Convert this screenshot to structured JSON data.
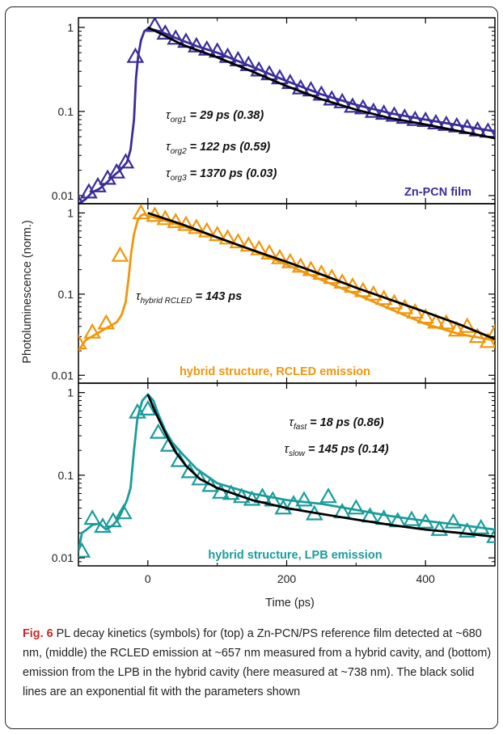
{
  "chart_data": {
    "type": "scatter",
    "shared_x": {
      "label": "Time (ps)",
      "lim": [
        -100,
        500
      ],
      "ticks": [
        0,
        200,
        400
      ]
    },
    "shared_y_label": "Photoluminescence (norm.)",
    "y_scale": "log",
    "panels": [
      {
        "name": "top",
        "label": "Zn-PCN film",
        "color": "#3a2d9a",
        "ylim": [
          0.008,
          1.3
        ],
        "y_ticks": [
          {
            "v": 1,
            "t": "1"
          },
          {
            "v": 0.1,
            "t": "0.1"
          },
          {
            "v": 0.01,
            "t": "0.01"
          }
        ],
        "annotations": [
          {
            "sub": "org1",
            "text": "= 29 ps (0.38)"
          },
          {
            "sub": "org2",
            "text": "= 122 ps (0.59)"
          },
          {
            "sub": "org3",
            "text": "= 1370 ps (0.03)"
          }
        ],
        "data_line": [
          [
            -100,
            0.008
          ],
          [
            -90,
            0.009
          ],
          [
            -80,
            0.011
          ],
          [
            -70,
            0.012
          ],
          [
            -60,
            0.014
          ],
          [
            -50,
            0.017
          ],
          [
            -40,
            0.02
          ],
          [
            -30,
            0.025
          ],
          [
            -25,
            0.035
          ],
          [
            -20,
            0.08
          ],
          [
            -17,
            0.25
          ],
          [
            -14,
            0.45
          ],
          [
            -10,
            0.7
          ],
          [
            -5,
            0.9
          ],
          [
            0,
            0.97
          ],
          [
            10,
            0.93
          ],
          [
            20,
            0.88
          ],
          [
            40,
            0.75
          ],
          [
            70,
            0.6
          ],
          [
            100,
            0.5
          ],
          [
            150,
            0.34
          ],
          [
            200,
            0.23
          ],
          [
            250,
            0.16
          ],
          [
            300,
            0.12
          ],
          [
            350,
            0.095
          ],
          [
            400,
            0.08
          ],
          [
            450,
            0.068
          ],
          [
            500,
            0.058
          ]
        ],
        "markers": [
          [
            -100,
            0.008
          ],
          [
            -85,
            0.011
          ],
          [
            -72,
            0.013
          ],
          [
            -58,
            0.016
          ],
          [
            -45,
            0.019
          ],
          [
            -32,
            0.025
          ],
          [
            -18,
            0.45
          ],
          [
            10,
            1.05
          ],
          [
            25,
            0.85
          ],
          [
            40,
            0.74
          ],
          [
            55,
            0.68
          ],
          [
            70,
            0.6
          ],
          [
            85,
            0.55
          ],
          [
            100,
            0.52
          ],
          [
            115,
            0.45
          ],
          [
            130,
            0.41
          ],
          [
            145,
            0.36
          ],
          [
            160,
            0.31
          ],
          [
            175,
            0.28
          ],
          [
            190,
            0.25
          ],
          [
            205,
            0.22
          ],
          [
            220,
            0.19
          ],
          [
            235,
            0.18
          ],
          [
            250,
            0.16
          ],
          [
            265,
            0.14
          ],
          [
            280,
            0.13
          ],
          [
            295,
            0.115
          ],
          [
            310,
            0.11
          ],
          [
            325,
            0.1
          ],
          [
            340,
            0.095
          ],
          [
            355,
            0.09
          ],
          [
            370,
            0.085
          ],
          [
            385,
            0.08
          ],
          [
            400,
            0.078
          ],
          [
            415,
            0.073
          ],
          [
            430,
            0.07
          ],
          [
            445,
            0.067
          ],
          [
            460,
            0.064
          ],
          [
            475,
            0.06
          ],
          [
            490,
            0.058
          ]
        ],
        "fit": [
          [
            0,
            1.0
          ],
          [
            20,
            0.83
          ],
          [
            50,
            0.62
          ],
          [
            100,
            0.44
          ],
          [
            150,
            0.3
          ],
          [
            200,
            0.2
          ],
          [
            250,
            0.14
          ],
          [
            300,
            0.105
          ],
          [
            350,
            0.083
          ],
          [
            400,
            0.07
          ],
          [
            450,
            0.058
          ],
          [
            500,
            0.048
          ]
        ]
      },
      {
        "name": "middle",
        "label": "hybrid structure, RCLED emission",
        "color": "#f0960a",
        "ylim": [
          0.008,
          1.3
        ],
        "y_ticks": [
          {
            "v": 1,
            "t": "1"
          },
          {
            "v": 0.1,
            "t": "0.1"
          },
          {
            "v": 0.01,
            "t": "0.01"
          }
        ],
        "annotations": [
          {
            "sub": "hybrid RCLED",
            "text": "= 143 ps"
          }
        ],
        "data_line": [
          [
            -100,
            0.02
          ],
          [
            -90,
            0.027
          ],
          [
            -75,
            0.032
          ],
          [
            -60,
            0.038
          ],
          [
            -45,
            0.045
          ],
          [
            -38,
            0.055
          ],
          [
            -32,
            0.08
          ],
          [
            -28,
            0.15
          ],
          [
            -24,
            0.32
          ],
          [
            -20,
            0.55
          ],
          [
            -15,
            0.8
          ],
          [
            -10,
            0.93
          ],
          [
            -5,
            0.97
          ],
          [
            0,
            0.92
          ],
          [
            10,
            0.88
          ],
          [
            30,
            0.78
          ],
          [
            60,
            0.65
          ],
          [
            100,
            0.5
          ],
          [
            150,
            0.35
          ],
          [
            200,
            0.23
          ],
          [
            250,
            0.15
          ],
          [
            300,
            0.1
          ],
          [
            350,
            0.065
          ],
          [
            400,
            0.043
          ],
          [
            450,
            0.032
          ],
          [
            500,
            0.027
          ]
        ],
        "markers": [
          [
            -100,
            0.025
          ],
          [
            -80,
            0.034
          ],
          [
            -60,
            0.044
          ],
          [
            -40,
            0.3
          ],
          [
            -10,
            1.0
          ],
          [
            10,
            0.93
          ],
          [
            25,
            0.85
          ],
          [
            40,
            0.78
          ],
          [
            55,
            0.72
          ],
          [
            70,
            0.66
          ],
          [
            85,
            0.6
          ],
          [
            100,
            0.54
          ],
          [
            115,
            0.49
          ],
          [
            130,
            0.44
          ],
          [
            145,
            0.4
          ],
          [
            160,
            0.36
          ],
          [
            175,
            0.32
          ],
          [
            190,
            0.28
          ],
          [
            205,
            0.25
          ],
          [
            220,
            0.22
          ],
          [
            235,
            0.2
          ],
          [
            250,
            0.18
          ],
          [
            265,
            0.16
          ],
          [
            280,
            0.14
          ],
          [
            295,
            0.125
          ],
          [
            310,
            0.11
          ],
          [
            325,
            0.1
          ],
          [
            340,
            0.088
          ],
          [
            355,
            0.078
          ],
          [
            370,
            0.068
          ],
          [
            385,
            0.06
          ],
          [
            400,
            0.052
          ],
          [
            415,
            0.045
          ],
          [
            430,
            0.044
          ],
          [
            445,
            0.036
          ],
          [
            460,
            0.04
          ],
          [
            475,
            0.03
          ],
          [
            490,
            0.026
          ],
          [
            500,
            0.033
          ]
        ],
        "fit": [
          [
            0,
            1.0
          ],
          [
            50,
            0.72
          ],
          [
            100,
            0.5
          ],
          [
            150,
            0.35
          ],
          [
            200,
            0.25
          ],
          [
            250,
            0.175
          ],
          [
            300,
            0.12
          ],
          [
            350,
            0.085
          ],
          [
            400,
            0.06
          ],
          [
            450,
            0.042
          ],
          [
            500,
            0.028
          ]
        ]
      },
      {
        "name": "bottom",
        "label": "hybrid structure, LPB emission",
        "color": "#1b9c9c",
        "ylim": [
          0.008,
          1.3
        ],
        "y_ticks": [
          {
            "v": 1,
            "t": "1"
          },
          {
            "v": 0.1,
            "t": "0.1"
          },
          {
            "v": 0.01,
            "t": "0.01"
          }
        ],
        "annotations": [
          {
            "sub": "fast",
            "text": "= 18 ps (0.86)"
          },
          {
            "sub": "slow",
            "text": "= 145 ps (0.14)"
          }
        ],
        "data_line": [
          [
            -100,
            0.012
          ],
          [
            -95,
            0.02
          ],
          [
            -88,
            0.022
          ],
          [
            -80,
            0.025
          ],
          [
            -70,
            0.026
          ],
          [
            -60,
            0.022
          ],
          [
            -50,
            0.025
          ],
          [
            -42,
            0.03
          ],
          [
            -35,
            0.04
          ],
          [
            -30,
            0.05
          ],
          [
            -25,
            0.07
          ],
          [
            -20,
            0.2
          ],
          [
            -15,
            0.5
          ],
          [
            -8,
            0.8
          ],
          [
            0,
            0.95
          ],
          [
            8,
            0.8
          ],
          [
            15,
            0.55
          ],
          [
            25,
            0.35
          ],
          [
            35,
            0.25
          ],
          [
            50,
            0.18
          ],
          [
            70,
            0.12
          ],
          [
            100,
            0.08
          ],
          [
            150,
            0.06
          ],
          [
            200,
            0.05
          ],
          [
            250,
            0.045
          ],
          [
            300,
            0.038
          ],
          [
            350,
            0.032
          ],
          [
            400,
            0.028
          ],
          [
            450,
            0.025
          ],
          [
            500,
            0.022
          ]
        ],
        "markers": [
          [
            -95,
            0.012
          ],
          [
            -80,
            0.03
          ],
          [
            -65,
            0.024
          ],
          [
            -50,
            0.028
          ],
          [
            -35,
            0.035
          ],
          [
            -15,
            0.58
          ],
          [
            0,
            0.63
          ],
          [
            15,
            0.33
          ],
          [
            30,
            0.23
          ],
          [
            45,
            0.15
          ],
          [
            60,
            0.11
          ],
          [
            75,
            0.09
          ],
          [
            90,
            0.075
          ],
          [
            105,
            0.062
          ],
          [
            120,
            0.06
          ],
          [
            135,
            0.055
          ],
          [
            150,
            0.051
          ],
          [
            165,
            0.055
          ],
          [
            180,
            0.05
          ],
          [
            195,
            0.04
          ],
          [
            210,
            0.045
          ],
          [
            225,
            0.05
          ],
          [
            240,
            0.034
          ],
          [
            260,
            0.055
          ],
          [
            280,
            0.036
          ],
          [
            300,
            0.04
          ],
          [
            320,
            0.032
          ],
          [
            340,
            0.03
          ],
          [
            360,
            0.028
          ],
          [
            380,
            0.029
          ],
          [
            400,
            0.027
          ],
          [
            420,
            0.022
          ],
          [
            440,
            0.027
          ],
          [
            460,
            0.021
          ],
          [
            480,
            0.023
          ],
          [
            500,
            0.018
          ]
        ],
        "fit": [
          [
            0,
            0.95
          ],
          [
            10,
            0.6
          ],
          [
            20,
            0.4
          ],
          [
            30,
            0.27
          ],
          [
            40,
            0.19
          ],
          [
            55,
            0.13
          ],
          [
            75,
            0.09
          ],
          [
            100,
            0.07
          ],
          [
            150,
            0.05
          ],
          [
            200,
            0.04
          ],
          [
            250,
            0.034
          ],
          [
            300,
            0.029
          ],
          [
            350,
            0.025
          ],
          [
            400,
            0.022
          ],
          [
            450,
            0.02
          ],
          [
            500,
            0.018
          ]
        ]
      }
    ]
  },
  "caption": {
    "label": "Fig. 6",
    "text": " PL decay kinetics (symbols) for (top) a Zn-PCN/PS reference film detected at ~680 nm, (middle) the RCLED emission at ~657 nm measured from a hybrid cavity, and (bottom) emission from the LPB in the hybrid cavity (here measured at ~738 nm). The black solid lines are an exponential fit with the parameters shown"
  }
}
